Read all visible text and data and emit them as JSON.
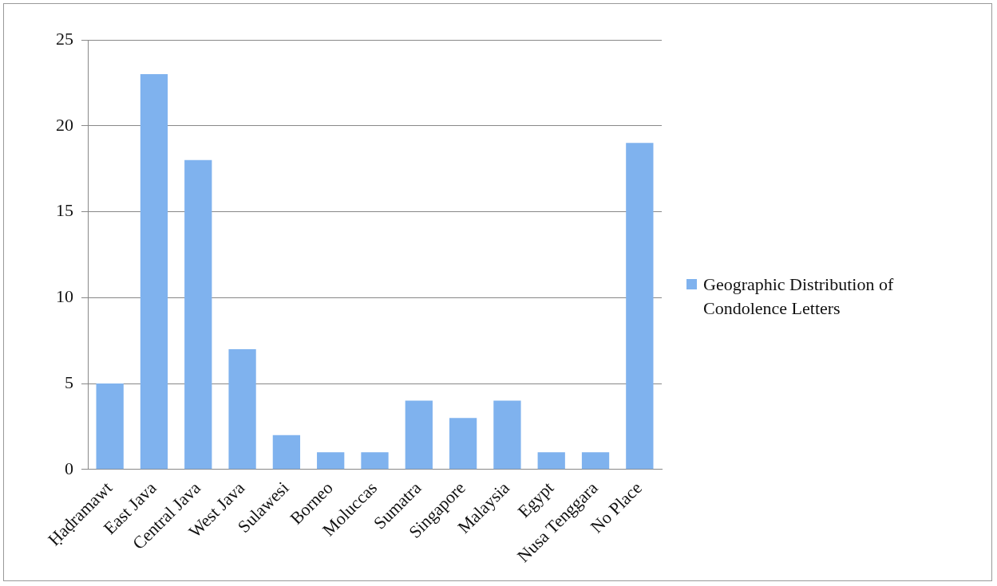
{
  "chart_data": {
    "type": "bar",
    "categories": [
      "Ḥaḍramawt",
      "East Java",
      "Central Java",
      "West Java",
      "Sulawesi",
      "Borneo",
      "Moluccas",
      "Sumatra",
      "Singapore",
      "Malaysia",
      "Egypt",
      "Nusa Tenggara",
      "No Place"
    ],
    "series": [
      {
        "name": "Geographic Distribution of Condolence Letters",
        "color": "#7fb2ee",
        "values": [
          5,
          23,
          18,
          7,
          2,
          1,
          1,
          4,
          3,
          4,
          1,
          1,
          19
        ]
      }
    ],
    "ylim": [
      0,
      25
    ],
    "yticks": [
      0,
      5,
      10,
      15,
      20,
      25
    ],
    "grid": "y",
    "legend": "right"
  }
}
